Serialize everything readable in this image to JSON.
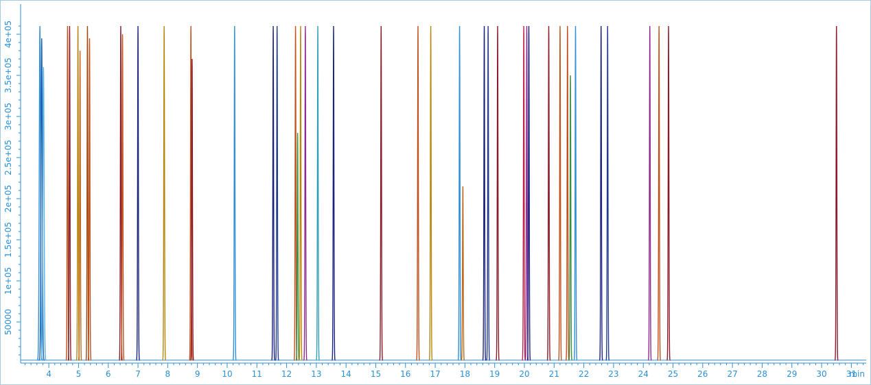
{
  "chart_data": {
    "type": "line",
    "title": "",
    "xlabel": "",
    "x_unit": "min",
    "ylabel": "",
    "xlim": [
      3.05,
      31.5
    ],
    "ylim": [
      0,
      410000
    ],
    "x_ticks": [
      4,
      5,
      6,
      7,
      8,
      9,
      10,
      11,
      12,
      13,
      14,
      15,
      16,
      17,
      18,
      19,
      20,
      21,
      22,
      23,
      24,
      25,
      26,
      27,
      28,
      29,
      30,
      31
    ],
    "x_tick_labels": [
      "4",
      "5",
      "6",
      "7",
      "8",
      "9",
      "10",
      "11",
      "12",
      "13",
      "14",
      "15",
      "16",
      "17",
      "18",
      "19",
      "20",
      "21",
      "22",
      "23",
      "24",
      "25",
      "26",
      "27",
      "28",
      "29",
      "30",
      "31"
    ],
    "y_ticks": [
      50000,
      100000,
      150000,
      200000,
      250000,
      300000,
      350000,
      400000
    ],
    "y_tick_labels": [
      "50000",
      "1e+05",
      "1.5e+05",
      "2e+05",
      "2.5e+05",
      "3e+05",
      "3.5e+05",
      "4e+05"
    ],
    "grid": false,
    "legend": "none",
    "baseline_value": 3500,
    "peaks": [
      {
        "rt": 3.7,
        "height": 410000,
        "width": 0.05,
        "color": "#2f8fd8"
      },
      {
        "rt": 3.76,
        "height": 395000,
        "width": 0.05,
        "color": "#1f5fa8"
      },
      {
        "rt": 3.82,
        "height": 360000,
        "width": 0.05,
        "color": "#55b0e8"
      },
      {
        "rt": 4.63,
        "height": 410000,
        "width": 0.03,
        "color": "#c0501c"
      },
      {
        "rt": 4.7,
        "height": 410000,
        "width": 0.03,
        "color": "#8b1a2a"
      },
      {
        "rt": 4.98,
        "height": 410000,
        "width": 0.03,
        "color": "#b8860b"
      },
      {
        "rt": 5.05,
        "height": 380000,
        "width": 0.03,
        "color": "#c06a1c"
      },
      {
        "rt": 5.3,
        "height": 410000,
        "width": 0.03,
        "color": "#a04a10"
      },
      {
        "rt": 5.37,
        "height": 395000,
        "width": 0.03,
        "color": "#c0501c"
      },
      {
        "rt": 6.42,
        "height": 410000,
        "width": 0.03,
        "color": "#8b1a2a"
      },
      {
        "rt": 6.48,
        "height": 400000,
        "width": 0.03,
        "color": "#c0501c"
      },
      {
        "rt": 7.0,
        "height": 410000,
        "width": 0.03,
        "color": "#1a237e"
      },
      {
        "rt": 7.88,
        "height": 410000,
        "width": 0.03,
        "color": "#b8860b"
      },
      {
        "rt": 8.78,
        "height": 410000,
        "width": 0.03,
        "color": "#c0501c"
      },
      {
        "rt": 8.82,
        "height": 370000,
        "width": 0.03,
        "color": "#8b1a2a"
      },
      {
        "rt": 10.25,
        "height": 410000,
        "width": 0.03,
        "color": "#2f8fd8"
      },
      {
        "rt": 11.55,
        "height": 410000,
        "width": 0.03,
        "color": "#1a237e"
      },
      {
        "rt": 11.68,
        "height": 410000,
        "width": 0.03,
        "color": "#233b8f"
      },
      {
        "rt": 12.3,
        "height": 410000,
        "width": 0.03,
        "color": "#c0501c"
      },
      {
        "rt": 12.37,
        "height": 280000,
        "width": 0.03,
        "color": "#3a8f3a"
      },
      {
        "rt": 12.47,
        "height": 410000,
        "width": 0.03,
        "color": "#b8860b"
      },
      {
        "rt": 12.63,
        "height": 410000,
        "width": 0.03,
        "color": "#8e2a8e"
      },
      {
        "rt": 13.05,
        "height": 410000,
        "width": 0.03,
        "color": "#2f9fb8"
      },
      {
        "rt": 13.58,
        "height": 410000,
        "width": 0.03,
        "color": "#1a237e"
      },
      {
        "rt": 15.18,
        "height": 410000,
        "width": 0.03,
        "color": "#8b1a2a"
      },
      {
        "rt": 16.42,
        "height": 410000,
        "width": 0.03,
        "color": "#c0501c"
      },
      {
        "rt": 16.85,
        "height": 410000,
        "width": 0.03,
        "color": "#b8860b"
      },
      {
        "rt": 17.82,
        "height": 410000,
        "width": 0.03,
        "color": "#2f8fd8"
      },
      {
        "rt": 17.93,
        "height": 215000,
        "width": 0.03,
        "color": "#c06a1c"
      },
      {
        "rt": 18.65,
        "height": 410000,
        "width": 0.03,
        "color": "#1a237e"
      },
      {
        "rt": 18.78,
        "height": 410000,
        "width": 0.03,
        "color": "#233b8f"
      },
      {
        "rt": 19.1,
        "height": 410000,
        "width": 0.03,
        "color": "#8b1a2a"
      },
      {
        "rt": 19.98,
        "height": 410000,
        "width": 0.03,
        "color": "#c0204a"
      },
      {
        "rt": 20.08,
        "height": 410000,
        "width": 0.03,
        "color": "#8e2a8e"
      },
      {
        "rt": 20.15,
        "height": 410000,
        "width": 0.03,
        "color": "#1a237e"
      },
      {
        "rt": 20.82,
        "height": 410000,
        "width": 0.03,
        "color": "#8b1a2a"
      },
      {
        "rt": 21.2,
        "height": 410000,
        "width": 0.03,
        "color": "#c0501c"
      },
      {
        "rt": 21.45,
        "height": 410000,
        "width": 0.03,
        "color": "#c0501c"
      },
      {
        "rt": 21.55,
        "height": 350000,
        "width": 0.03,
        "color": "#3a8f3a"
      },
      {
        "rt": 21.72,
        "height": 410000,
        "width": 0.03,
        "color": "#2f8fd8"
      },
      {
        "rt": 22.58,
        "height": 410000,
        "width": 0.03,
        "color": "#1a237e"
      },
      {
        "rt": 22.8,
        "height": 410000,
        "width": 0.03,
        "color": "#233b8f"
      },
      {
        "rt": 24.22,
        "height": 410000,
        "width": 0.03,
        "color": "#8e2a8e"
      },
      {
        "rt": 24.53,
        "height": 410000,
        "width": 0.03,
        "color": "#c0501c"
      },
      {
        "rt": 24.85,
        "height": 410000,
        "width": 0.03,
        "color": "#8b1a2a"
      },
      {
        "rt": 30.5,
        "height": 410000,
        "width": 0.03,
        "color": "#8b1a2a"
      }
    ]
  }
}
